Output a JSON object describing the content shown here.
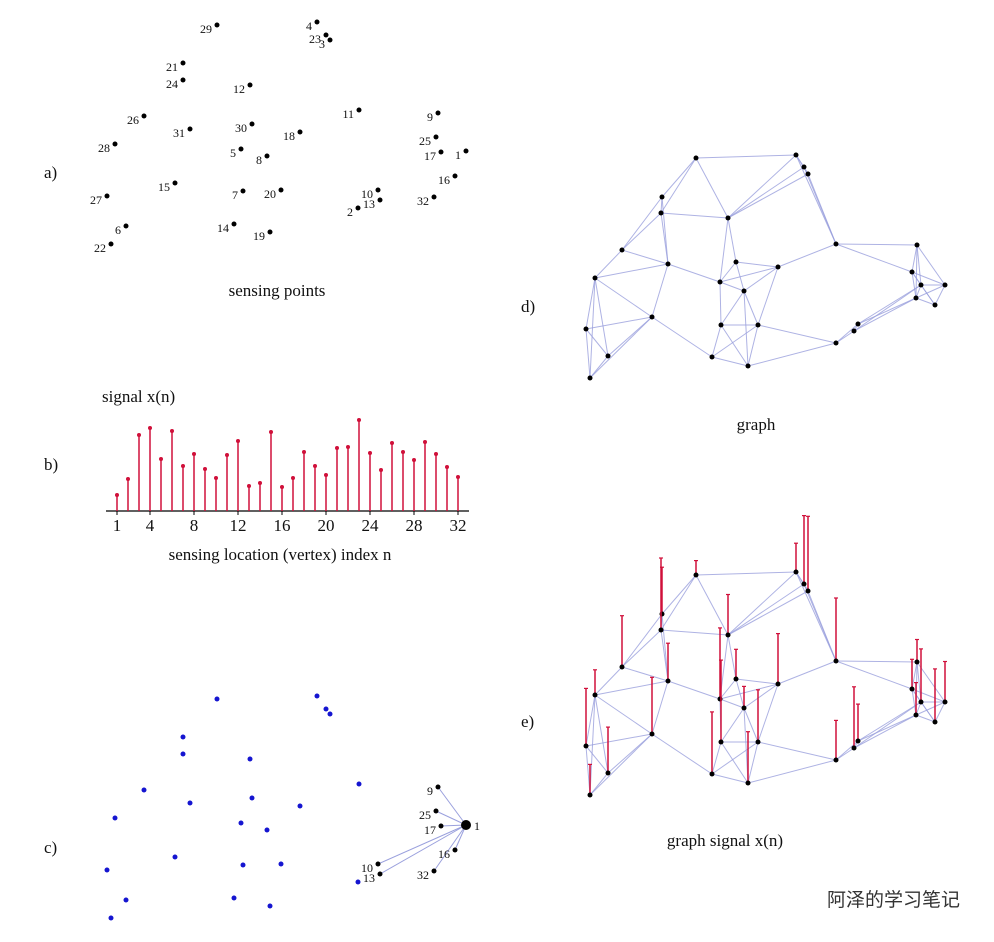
{
  "panels": {
    "a": {
      "label": "a)",
      "caption": "sensing points"
    },
    "b": {
      "label": "b)"
    },
    "c": {
      "label": "c)"
    },
    "d": {
      "label": "d)",
      "caption": "graph"
    },
    "e": {
      "label": "e)",
      "caption": "graph signal x(n)"
    }
  },
  "chart_data": {
    "type": "stem",
    "title": "signal x(n)",
    "xlabel": "sensing location (vertex) index n",
    "x": [
      1,
      2,
      3,
      4,
      5,
      6,
      7,
      8,
      9,
      10,
      11,
      12,
      13,
      14,
      15,
      16,
      17,
      18,
      19,
      20,
      21,
      22,
      23,
      24,
      25,
      26,
      27,
      28,
      29,
      30,
      31,
      32
    ],
    "values": [
      1.6,
      3.2,
      7.6,
      8.3,
      5.2,
      8.0,
      4.5,
      5.7,
      4.2,
      3.3,
      5.6,
      7.0,
      2.5,
      2.8,
      7.9,
      2.4,
      3.3,
      5.9,
      4.5,
      3.6,
      6.3,
      6.4,
      9.1,
      5.8,
      4.1,
      6.8,
      5.9,
      5.1,
      6.9,
      5.7,
      4.4,
      3.4
    ],
    "color": "#d0103a",
    "xlim": [
      0,
      33
    ],
    "ylim": [
      0,
      10
    ],
    "xticks": [
      1,
      4,
      8,
      12,
      16,
      20,
      24,
      28,
      32
    ]
  },
  "watermark": "阿泽的学习笔记"
}
